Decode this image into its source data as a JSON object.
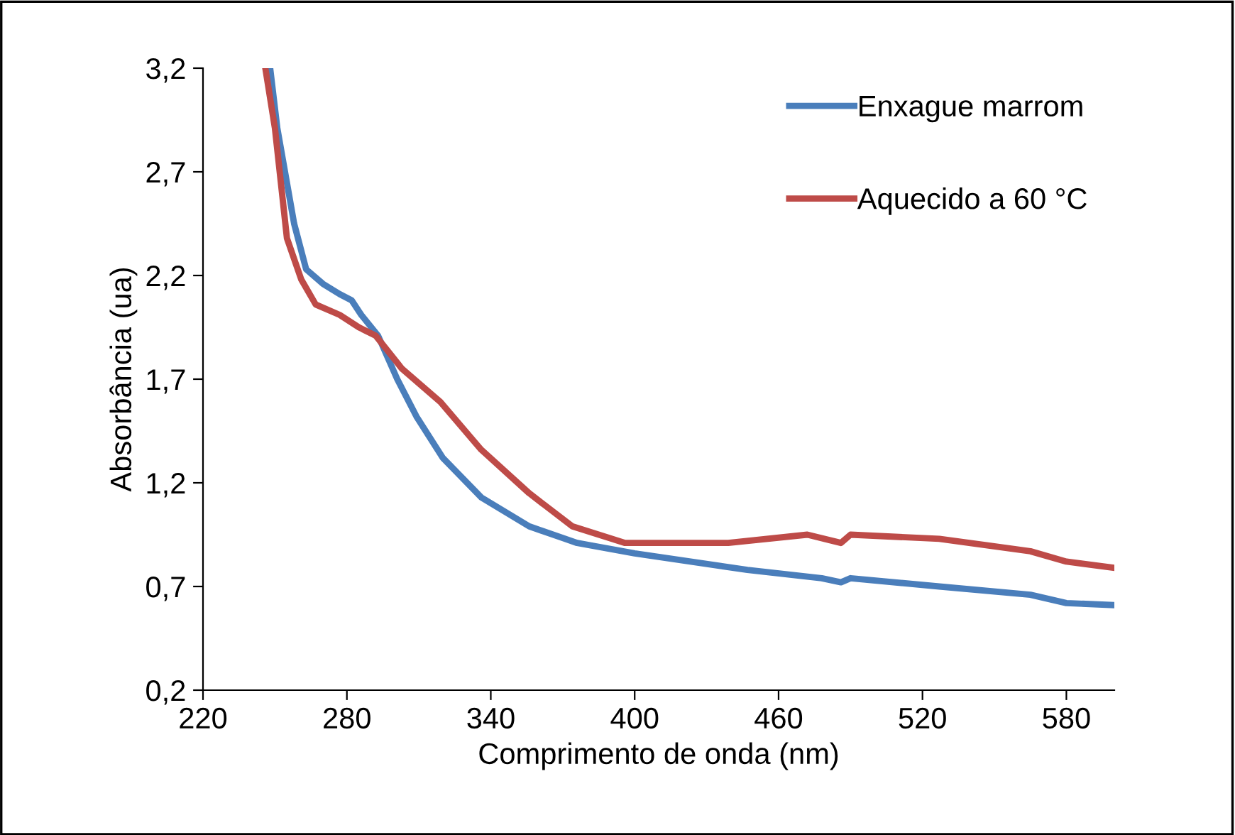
{
  "chart_data": {
    "type": "line",
    "xlabel": "Comprimento de onda (nm)",
    "ylabel": "Absorbância (ua)",
    "xlim": [
      220,
      600
    ],
    "xticks": [
      220,
      280,
      340,
      400,
      460,
      520,
      580
    ],
    "ylim": [
      0.2,
      3.2
    ],
    "yticks": [
      {
        "value": 0.2,
        "label": "0,2"
      },
      {
        "value": 0.7,
        "label": "0,7"
      },
      {
        "value": 1.2,
        "label": "1,2"
      },
      {
        "value": 1.7,
        "label": "1,7"
      },
      {
        "value": 2.2,
        "label": "2,2"
      },
      {
        "value": 2.7,
        "label": "2,7"
      },
      {
        "value": 3.2,
        "label": "3,2"
      }
    ],
    "grid": false,
    "legend": "top right",
    "marker": "none",
    "line_style": "solid",
    "series": [
      {
        "name": "Enxague marrom",
        "color": "#4a7ebb",
        "x": [
          248,
          251,
          258,
          263,
          270,
          277,
          282,
          286,
          293,
          301,
          309,
          320,
          336,
          356,
          376,
          400,
          447,
          478,
          486,
          490,
          527,
          565,
          580,
          600
        ],
        "values": [
          3.2,
          2.91,
          2.45,
          2.23,
          2.16,
          2.11,
          2.08,
          2.01,
          1.91,
          1.7,
          1.52,
          1.32,
          1.13,
          0.99,
          0.91,
          0.86,
          0.78,
          0.74,
          0.72,
          0.74,
          0.7,
          0.66,
          0.62,
          0.61
        ]
      },
      {
        "name": "Aquecido a 60 °C",
        "color": "#be4b48",
        "x": [
          246,
          250,
          255,
          261,
          267,
          277,
          285,
          292,
          303,
          319,
          336,
          356,
          374,
          396,
          400,
          439,
          472,
          486,
          490,
          527,
          565,
          580,
          600
        ],
        "values": [
          3.2,
          2.91,
          2.38,
          2.18,
          2.06,
          2.01,
          1.95,
          1.91,
          1.75,
          1.59,
          1.36,
          1.15,
          0.99,
          0.91,
          0.91,
          0.91,
          0.95,
          0.91,
          0.95,
          0.93,
          0.87,
          0.82,
          0.79
        ]
      }
    ]
  }
}
